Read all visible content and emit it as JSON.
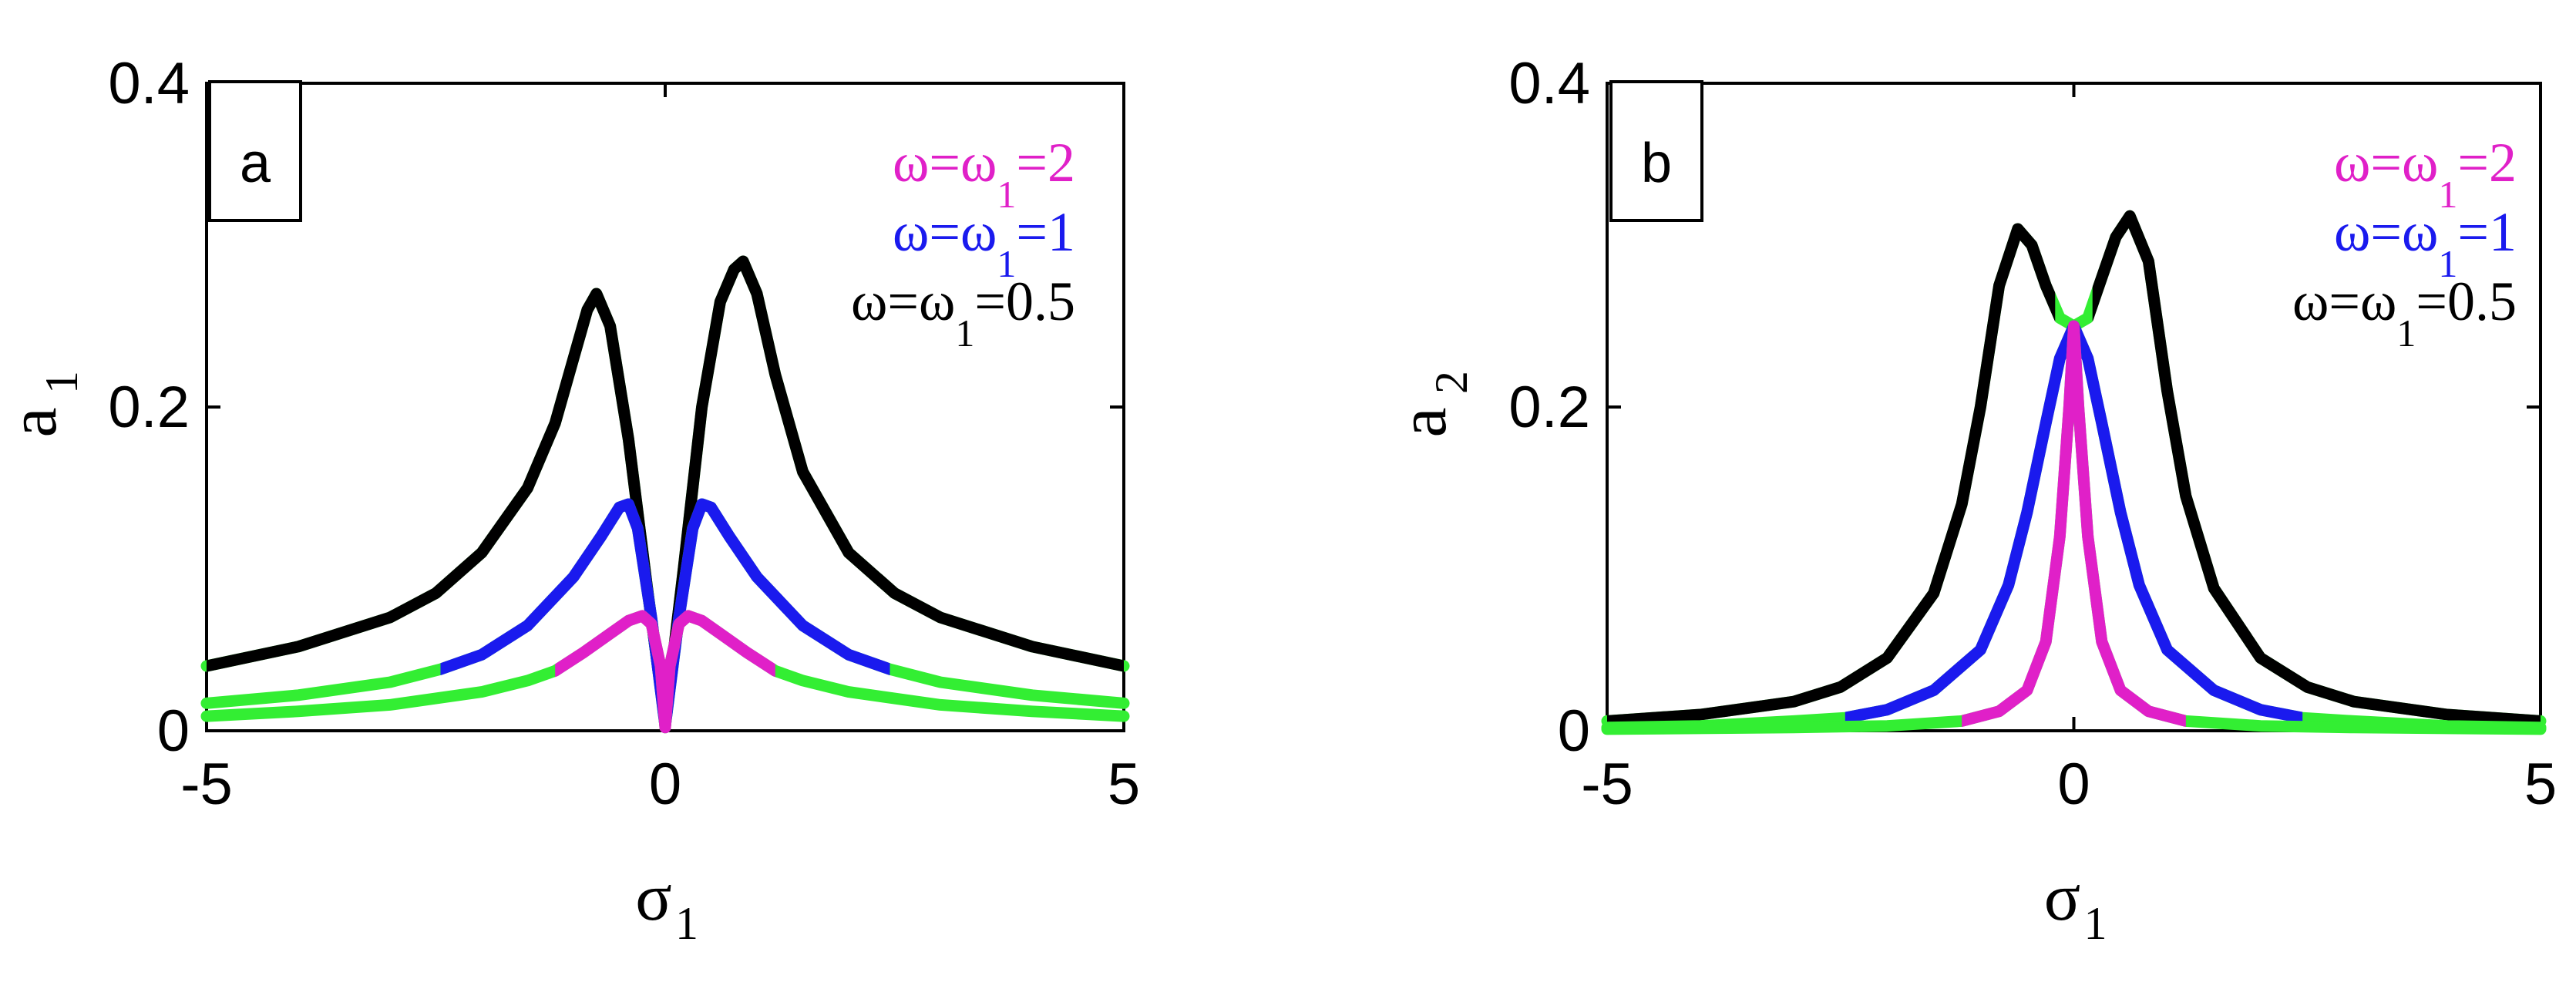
{
  "chart_data": [
    {
      "panel": "a",
      "type": "line",
      "xlabel": "σ",
      "xlabel_sub": "1",
      "ylabel": "a",
      "ylabel_sub": "1",
      "xlim": [
        -5,
        5
      ],
      "ylim": [
        0,
        0.4
      ],
      "xticks": [
        "-5",
        "0",
        "5"
      ],
      "yticks": [
        "0",
        "0.2",
        "0.4"
      ],
      "legend_placement": "top-right",
      "legend": [
        {
          "prefix": "ω=ω",
          "sub": "1",
          "suffix": "=2",
          "color": "#e020c8"
        },
        {
          "prefix": "ω=ω",
          "sub": "1",
          "suffix": "=1",
          "color": "#1a1aee"
        },
        {
          "prefix": "ω=ω",
          "sub": "1",
          "suffix": "=0.5",
          "color": "#000000"
        }
      ],
      "unstable_color": "#33ee33",
      "series": [
        {
          "legend_index": 2,
          "color": "#000000",
          "unstable_color": "#33ee33",
          "stable_range": [
            -5,
            5
          ],
          "x": [
            -5,
            -4,
            -3,
            -2.5,
            -2,
            -1.5,
            -1.2,
            -1,
            -0.85,
            -0.75,
            -0.6,
            -0.4,
            -0.2,
            0,
            0.2,
            0.4,
            0.6,
            0.75,
            0.85,
            1,
            1.2,
            1.5,
            2,
            2.5,
            3,
            4,
            5
          ],
          "y": [
            0.04,
            0.052,
            0.07,
            0.085,
            0.11,
            0.15,
            0.19,
            0.23,
            0.26,
            0.27,
            0.25,
            0.18,
            0.09,
            0.005,
            0.1,
            0.2,
            0.265,
            0.285,
            0.29,
            0.27,
            0.22,
            0.16,
            0.11,
            0.085,
            0.07,
            0.052,
            0.04
          ]
        },
        {
          "legend_index": 1,
          "color": "#1a1aee",
          "unstable_color": "#33ee33",
          "stable_range": [
            -2.45,
            2.45
          ],
          "x": [
            -5,
            -4,
            -3,
            -2.45,
            -2,
            -1.5,
            -1,
            -0.7,
            -0.5,
            -0.4,
            -0.3,
            -0.15,
            0,
            0.15,
            0.3,
            0.4,
            0.5,
            0.7,
            1,
            1.5,
            2,
            2.45,
            3,
            4,
            5
          ],
          "y": [
            0.017,
            0.022,
            0.03,
            0.038,
            0.047,
            0.065,
            0.095,
            0.12,
            0.138,
            0.14,
            0.125,
            0.07,
            0.003,
            0.07,
            0.125,
            0.14,
            0.138,
            0.12,
            0.095,
            0.065,
            0.047,
            0.038,
            0.03,
            0.022,
            0.017
          ]
        },
        {
          "legend_index": 0,
          "color": "#e020c8",
          "unstable_color": "#33ee33",
          "stable_range": [
            -1.2,
            1.2
          ],
          "x": [
            -5,
            -4,
            -3,
            -2,
            -1.5,
            -1.2,
            -0.9,
            -0.6,
            -0.4,
            -0.25,
            -0.15,
            -0.05,
            0,
            0.05,
            0.15,
            0.25,
            0.4,
            0.6,
            0.9,
            1.2,
            1.5,
            2,
            3,
            4,
            5
          ],
          "y": [
            0.009,
            0.012,
            0.016,
            0.024,
            0.031,
            0.037,
            0.048,
            0.06,
            0.068,
            0.071,
            0.066,
            0.04,
            0.002,
            0.04,
            0.066,
            0.071,
            0.068,
            0.06,
            0.048,
            0.037,
            0.031,
            0.024,
            0.016,
            0.012,
            0.009
          ]
        }
      ]
    },
    {
      "panel": "b",
      "type": "line",
      "xlabel": "σ",
      "xlabel_sub": "1",
      "ylabel": "a",
      "ylabel_sub": "2",
      "xlim": [
        -5,
        5
      ],
      "ylim": [
        0,
        0.4
      ],
      "xticks": [
        "-5",
        "0",
        "5"
      ],
      "yticks": [
        "0",
        "0.2",
        "0.4"
      ],
      "legend_placement": "top-right",
      "legend": [
        {
          "prefix": "ω=ω",
          "sub": "1",
          "suffix": "=2",
          "color": "#e020c8"
        },
        {
          "prefix": "ω=ω",
          "sub": "1",
          "suffix": "=1",
          "color": "#1a1aee"
        },
        {
          "prefix": "ω=ω",
          "sub": "1",
          "suffix": "=0.5",
          "color": "#000000"
        }
      ],
      "unstable_color": "#33ee33",
      "series": [
        {
          "legend_index": 2,
          "color": "#000000",
          "unstable_color": "#33ee33",
          "stable_range": [
            -5,
            -0.2
          ],
          "stable_range_2": [
            0.2,
            5
          ],
          "x": [
            -5,
            -4,
            -3,
            -2.5,
            -2,
            -1.5,
            -1.2,
            -1,
            -0.8,
            -0.6,
            -0.45,
            -0.3,
            -0.15,
            0,
            0.15,
            0.3,
            0.45,
            0.6,
            0.8,
            1,
            1.2,
            1.5,
            2,
            2.5,
            3,
            4,
            5
          ],
          "y": [
            0.006,
            0.01,
            0.018,
            0.027,
            0.045,
            0.085,
            0.14,
            0.2,
            0.275,
            0.31,
            0.3,
            0.275,
            0.255,
            0.25,
            0.255,
            0.28,
            0.305,
            0.318,
            0.29,
            0.21,
            0.145,
            0.088,
            0.045,
            0.027,
            0.018,
            0.01,
            0.006
          ]
        },
        {
          "legend_index": 1,
          "color": "#1a1aee",
          "unstable_color": "#33ee33",
          "stable_range": [
            -2.45,
            2.45
          ],
          "x": [
            -5,
            -4,
            -3,
            -2.45,
            -2,
            -1.5,
            -1,
            -0.7,
            -0.5,
            -0.3,
            -0.15,
            0,
            0.15,
            0.3,
            0.5,
            0.7,
            1,
            1.5,
            2,
            2.45,
            3,
            4,
            5
          ],
          "y": [
            0.002,
            0.003,
            0.006,
            0.008,
            0.013,
            0.025,
            0.05,
            0.09,
            0.135,
            0.19,
            0.23,
            0.25,
            0.23,
            0.19,
            0.135,
            0.09,
            0.05,
            0.025,
            0.013,
            0.008,
            0.006,
            0.003,
            0.002
          ]
        },
        {
          "legend_index": 0,
          "color": "#e020c8",
          "unstable_color": "#33ee33",
          "stable_range": [
            -1.2,
            1.2
          ],
          "x": [
            -5,
            -3,
            -2,
            -1.2,
            -0.8,
            -0.5,
            -0.3,
            -0.15,
            -0.05,
            0,
            0.05,
            0.15,
            0.3,
            0.5,
            0.8,
            1.2,
            2,
            3,
            5
          ],
          "y": [
            0.001,
            0.002,
            0.003,
            0.006,
            0.012,
            0.025,
            0.055,
            0.12,
            0.2,
            0.25,
            0.2,
            0.12,
            0.055,
            0.025,
            0.012,
            0.006,
            0.003,
            0.002,
            0.001
          ]
        }
      ]
    }
  ]
}
